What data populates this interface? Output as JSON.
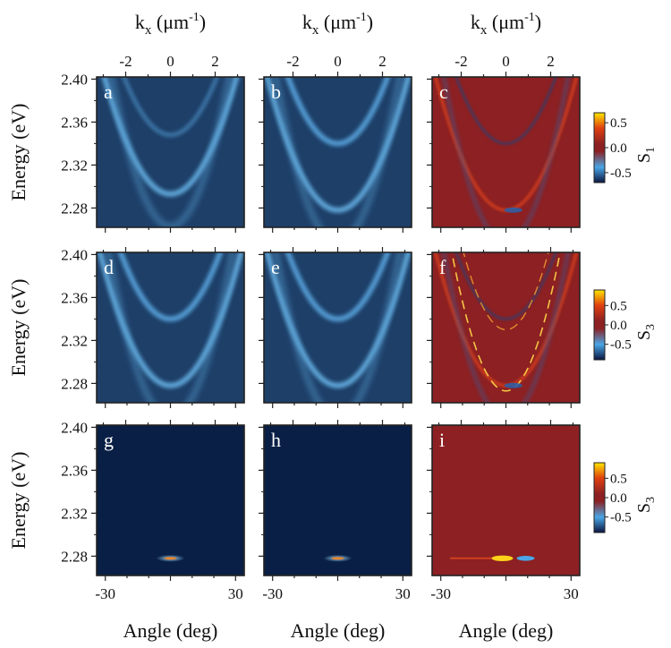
{
  "figure": {
    "top_axis_label": "k",
    "top_axis_label_sub": "x",
    "top_axis_unit_open": " (μm",
    "top_axis_unit_sup": "-1",
    "top_axis_unit_close": ")",
    "left_axis_label": "Energy (eV)",
    "bottom_axis_label": "Angle (deg)"
  },
  "chart_data": {
    "type": "heatmap",
    "energy_ticks": [
      "2.40",
      "2.36",
      "2.32",
      "2.28"
    ],
    "energy_range_eV": [
      2.262,
      2.402
    ],
    "angle_ticks": [
      "-30",
      "30"
    ],
    "angle_range_deg": [
      -34,
      34
    ],
    "k_ticks": [
      "-2",
      "0",
      "2"
    ],
    "k_range_inv_um": [
      -3.3,
      3.3
    ],
    "panels": [
      {
        "letter": "a",
        "row": 0,
        "col": 0,
        "kind": "intensity",
        "lower_branch_min_eV": 2.293,
        "upper_branch_min_eV": 2.348
      },
      {
        "letter": "b",
        "row": 0,
        "col": 1,
        "kind": "intensity",
        "lower_branch_min_eV": 2.278,
        "upper_branch_min_eV": 2.34
      },
      {
        "letter": "c",
        "row": 0,
        "col": 2,
        "kind": "stokes",
        "lower_branch_min_eV": 2.278,
        "upper_branch_min_eV": 2.34
      },
      {
        "letter": "d",
        "row": 1,
        "col": 0,
        "kind": "intensity",
        "lower_branch_min_eV": 2.278,
        "upper_branch_min_eV": 2.34
      },
      {
        "letter": "e",
        "row": 1,
        "col": 1,
        "kind": "intensity",
        "lower_branch_min_eV": 2.278,
        "upper_branch_min_eV": 2.34
      },
      {
        "letter": "f",
        "row": 1,
        "col": 2,
        "kind": "stokes",
        "lower_branch_min_eV": 2.278,
        "upper_branch_min_eV": 2.34
      },
      {
        "letter": "g",
        "row": 2,
        "col": 0,
        "kind": "lasing",
        "lasing_energy_eV": 2.278
      },
      {
        "letter": "h",
        "row": 2,
        "col": 1,
        "kind": "lasing",
        "lasing_energy_eV": 2.278
      },
      {
        "letter": "i",
        "row": 2,
        "col": 2,
        "kind": "lasing-stokes",
        "lasing_energy_eV": 2.278
      }
    ],
    "colorbars": [
      {
        "row": 0,
        "symbol": "S",
        "subscript": "1",
        "ticks": [
          "0.5",
          "0.0",
          "-0.5"
        ],
        "range": [
          -0.7,
          0.7
        ]
      },
      {
        "row": 1,
        "symbol": "S",
        "subscript": "3",
        "ticks": [
          "0.5",
          "0.0",
          "-0.5"
        ],
        "range": [
          -0.9,
          0.9
        ]
      },
      {
        "row": 2,
        "symbol": "S",
        "subscript": "3",
        "ticks": [
          "0.5",
          "0.0",
          "-0.5"
        ],
        "range": [
          -0.9,
          0.9
        ]
      }
    ],
    "colors": {
      "intensity_background": "#1d3f68",
      "lasing_background": "#0a1f45",
      "stokes_background": "#8c2022",
      "colormap_stokes": [
        "#0a1640",
        "#4aa6e6",
        "#8c2022",
        "#e04010",
        "#ffe600"
      ]
    }
  }
}
